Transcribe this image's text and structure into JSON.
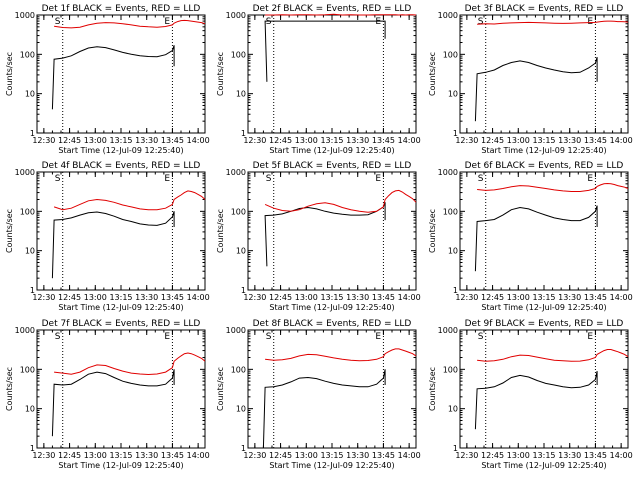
{
  "colors": {
    "events": "#000000",
    "lld": "#e00000",
    "axis": "#000000",
    "marker": "#000000"
  },
  "common": {
    "ylabel": "Counts/sec",
    "xlabel": "Start Time (12-Jul-09 12:25:40)",
    "xticks": [
      "12:30",
      "12:45",
      "13:00",
      "13:15",
      "13:30",
      "13:45",
      "14:00"
    ],
    "xtick_values": [
      4,
      19,
      34,
      49,
      64,
      79,
      94
    ],
    "xlim": [
      0,
      98
    ],
    "yscale": "log",
    "ylim": [
      1,
      1000
    ],
    "ytick_values": [
      1,
      10,
      100,
      1000
    ],
    "yticks": [
      "1",
      "10",
      "100",
      "1000"
    ],
    "grid": false,
    "marker_lines": [
      15,
      79
    ],
    "marker_labels": [
      "S",
      "E"
    ]
  },
  "chart_data": [
    {
      "type": "line",
      "title": "Det 1f BLACK = Events, RED = LLD",
      "x": [
        10,
        15,
        20,
        25,
        30,
        35,
        40,
        45,
        50,
        55,
        60,
        65,
        70,
        75,
        79,
        80,
        82,
        84,
        86,
        88,
        90,
        92,
        94,
        96,
        98
      ],
      "series": [
        {
          "name": "BLACK = Events",
          "start": [
            9,
            4
          ],
          "values": [
            75,
            80,
            92,
            118,
            145,
            155,
            148,
            130,
            112,
            100,
            92,
            88,
            87,
            98,
            125,
            170,
            null,
            null,
            null,
            null,
            null,
            null,
            null,
            null,
            null
          ],
          "end": [
            80,
            50
          ]
        },
        {
          "name": "RED = LLD",
          "values": [
            520,
            480,
            470,
            490,
            560,
            620,
            640,
            630,
            600,
            560,
            520,
            500,
            490,
            510,
            560,
            620,
            680,
            720,
            730,
            720,
            700,
            680,
            660,
            640,
            600
          ]
        }
      ]
    },
    {
      "type": "line",
      "title": "Det 2f BLACK = Events, RED = LLD",
      "x": [
        10,
        15,
        20,
        25,
        30,
        35,
        40,
        45,
        50,
        55,
        60,
        65,
        70,
        75,
        79,
        80,
        82,
        84,
        86,
        88,
        90,
        92,
        94,
        96,
        98
      ],
      "series": [
        {
          "name": "BLACK = Events",
          "start": [
            11,
            20
          ],
          "values": [
            700,
            700,
            700,
            700,
            700,
            700,
            700,
            700,
            700,
            700,
            700,
            700,
            700,
            700,
            700,
            700,
            null,
            null,
            null,
            null,
            null,
            null,
            null,
            null,
            null
          ],
          "end": [
            80,
            250
          ]
        },
        {
          "name": "RED = LLD",
          "values": [
            1000,
            1000,
            1010,
            1000,
            1020,
            1010,
            1000,
            1020,
            1050,
            1000,
            1010,
            1000,
            1000,
            1010,
            1020,
            1010,
            1020,
            1010,
            1020,
            1000,
            1010,
            1000,
            1010,
            1020,
            1000
          ]
        }
      ]
    },
    {
      "type": "line",
      "title": "Det 3f BLACK = Events, RED = LLD",
      "x": [
        10,
        15,
        20,
        25,
        30,
        35,
        40,
        45,
        50,
        55,
        60,
        65,
        70,
        75,
        79,
        80,
        82,
        84,
        86,
        88,
        90,
        92,
        94,
        96,
        98
      ],
      "series": [
        {
          "name": "BLACK = Events",
          "start": [
            9,
            2
          ],
          "values": [
            32,
            35,
            40,
            52,
            62,
            68,
            62,
            52,
            45,
            40,
            36,
            34,
            35,
            45,
            60,
            85,
            null,
            null,
            null,
            null,
            null,
            null,
            null,
            null,
            null
          ],
          "end": [
            80,
            20
          ]
        },
        {
          "name": "RED = LLD",
          "values": [
            580,
            600,
            590,
            620,
            630,
            640,
            650,
            640,
            630,
            620,
            610,
            620,
            630,
            640,
            650,
            660,
            680,
            690,
            700,
            700,
            690,
            680,
            680,
            670,
            660
          ]
        }
      ]
    },
    {
      "type": "line",
      "title": "Det 4f BLACK = Events, RED = LLD",
      "x": [
        10,
        15,
        20,
        25,
        30,
        35,
        40,
        45,
        50,
        55,
        60,
        65,
        70,
        75,
        79,
        80,
        82,
        84,
        86,
        88,
        90,
        92,
        94,
        96,
        98
      ],
      "series": [
        {
          "name": "BLACK = Events",
          "start": [
            9,
            2
          ],
          "values": [
            60,
            62,
            68,
            80,
            92,
            96,
            88,
            75,
            62,
            55,
            48,
            45,
            44,
            50,
            72,
            100,
            null,
            null,
            null,
            null,
            null,
            null,
            null,
            null,
            null
          ],
          "end": [
            80,
            40
          ]
        },
        {
          "name": "RED = LLD",
          "values": [
            130,
            110,
            120,
            150,
            185,
            200,
            190,
            170,
            145,
            130,
            115,
            110,
            110,
            120,
            150,
            200,
            230,
            260,
            300,
            330,
            320,
            300,
            270,
            240,
            200
          ]
        }
      ]
    },
    {
      "type": "line",
      "title": "Det 5f BLACK = Events, RED = LLD",
      "x": [
        10,
        15,
        20,
        25,
        30,
        35,
        40,
        45,
        50,
        55,
        60,
        65,
        70,
        75,
        79,
        80,
        82,
        84,
        86,
        88,
        90,
        92,
        94,
        96,
        98
      ],
      "series": [
        {
          "name": "BLACK = Events",
          "start": [
            11,
            4
          ],
          "values": [
            78,
            80,
            86,
            100,
            118,
            125,
            115,
            100,
            90,
            84,
            80,
            80,
            82,
            100,
            130,
            170,
            null,
            null,
            null,
            null,
            null,
            null,
            null,
            null,
            null
          ],
          "end": [
            80,
            60
          ]
        },
        {
          "name": "RED = LLD",
          "values": [
            150,
            120,
            105,
            100,
            110,
            135,
            155,
            165,
            150,
            125,
            110,
            100,
            95,
            100,
            130,
            200,
            250,
            300,
            330,
            340,
            310,
            270,
            240,
            210,
            170
          ]
        }
      ]
    },
    {
      "type": "line",
      "title": "Det 6f BLACK = Events, RED = LLD",
      "x": [
        10,
        15,
        20,
        25,
        30,
        35,
        40,
        45,
        50,
        55,
        60,
        65,
        70,
        75,
        79,
        80,
        82,
        84,
        86,
        88,
        90,
        92,
        94,
        96,
        98
      ],
      "series": [
        {
          "name": "BLACK = Events",
          "start": [
            9,
            3
          ],
          "values": [
            55,
            58,
            62,
            80,
            110,
            125,
            115,
            95,
            80,
            68,
            62,
            58,
            58,
            70,
            100,
            140,
            null,
            null,
            null,
            null,
            null,
            null,
            null,
            null,
            null
          ],
          "end": [
            80,
            40
          ]
        },
        {
          "name": "RED = LLD",
          "values": [
            360,
            340,
            350,
            380,
            420,
            450,
            440,
            410,
            380,
            350,
            330,
            320,
            320,
            340,
            380,
            430,
            470,
            500,
            510,
            500,
            480,
            450,
            430,
            410,
            380
          ]
        }
      ]
    },
    {
      "type": "line",
      "title": "Det 7f BLACK = Events, RED = LLD",
      "x": [
        10,
        15,
        20,
        25,
        30,
        35,
        40,
        45,
        50,
        55,
        60,
        65,
        70,
        75,
        79,
        80,
        82,
        84,
        86,
        88,
        90,
        92,
        94,
        96,
        98
      ],
      "series": [
        {
          "name": "BLACK = Events",
          "start": [
            9,
            2
          ],
          "values": [
            42,
            40,
            42,
            55,
            75,
            85,
            78,
            62,
            50,
            44,
            40,
            38,
            38,
            42,
            60,
            100,
            null,
            null,
            null,
            null,
            null,
            null,
            null,
            null,
            null
          ],
          "end": [
            80,
            40
          ]
        },
        {
          "name": "RED = LLD",
          "values": [
            85,
            80,
            75,
            85,
            110,
            130,
            125,
            105,
            90,
            80,
            76,
            74,
            76,
            85,
            110,
            160,
            190,
            220,
            250,
            260,
            250,
            230,
            210,
            190,
            160
          ]
        }
      ]
    },
    {
      "type": "line",
      "title": "Det 8f BLACK = Events, RED = LLD",
      "x": [
        10,
        15,
        20,
        25,
        30,
        35,
        40,
        45,
        50,
        55,
        60,
        65,
        70,
        75,
        79,
        80,
        82,
        84,
        86,
        88,
        90,
        92,
        94,
        96,
        98
      ],
      "series": [
        {
          "name": "BLACK = Events",
          "start": [
            9,
            1
          ],
          "values": [
            35,
            36,
            40,
            48,
            60,
            62,
            58,
            50,
            44,
            40,
            38,
            36,
            36,
            42,
            60,
            100,
            null,
            null,
            null,
            null,
            null,
            null,
            null,
            null,
            null
          ],
          "end": [
            80,
            40
          ]
        },
        {
          "name": "RED = LLD",
          "values": [
            180,
            170,
            175,
            190,
            220,
            240,
            235,
            215,
            195,
            180,
            170,
            165,
            168,
            180,
            210,
            250,
            280,
            310,
            330,
            330,
            310,
            290,
            270,
            250,
            220
          ]
        }
      ]
    },
    {
      "type": "line",
      "title": "Det 9f BLACK = Events, RED = LLD",
      "x": [
        10,
        15,
        20,
        25,
        30,
        35,
        40,
        45,
        50,
        55,
        60,
        65,
        70,
        75,
        79,
        80,
        82,
        84,
        86,
        88,
        90,
        92,
        94,
        96,
        98
      ],
      "series": [
        {
          "name": "BLACK = Events",
          "start": [
            9,
            3
          ],
          "values": [
            32,
            33,
            36,
            45,
            62,
            70,
            64,
            52,
            44,
            40,
            36,
            34,
            35,
            40,
            55,
            90,
            null,
            null,
            null,
            null,
            null,
            null,
            null,
            null,
            null
          ],
          "end": [
            80,
            40
          ]
        },
        {
          "name": "RED = LLD",
          "values": [
            170,
            160,
            165,
            180,
            210,
            230,
            225,
            205,
            185,
            170,
            165,
            160,
            162,
            175,
            200,
            240,
            270,
            300,
            320,
            320,
            300,
            280,
            260,
            240,
            210
          ]
        }
      ]
    }
  ]
}
